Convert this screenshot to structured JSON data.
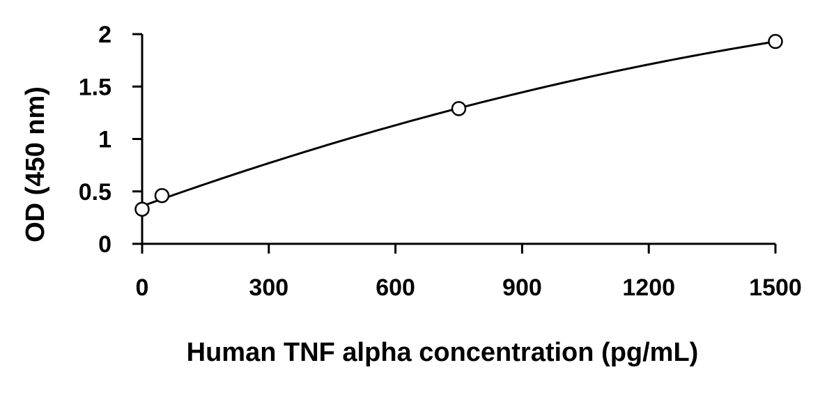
{
  "chart_data": {
    "type": "scatter",
    "title": "",
    "xlabel": "Human TNF alpha concentration (pg/mL)",
    "ylabel": "OD (450 nm)",
    "xlim": [
      0,
      1500
    ],
    "ylim": [
      0,
      2
    ],
    "x_ticks": [
      0,
      300,
      600,
      900,
      1200,
      1500
    ],
    "x_tick_labels": [
      "0",
      "300",
      "600",
      "900",
      "1200",
      "1500"
    ],
    "y_ticks": [
      0,
      0.5,
      1,
      1.5,
      2
    ],
    "y_tick_labels": [
      "0",
      "0.5",
      "1",
      "1.5",
      "2"
    ],
    "grid": false,
    "legend": "none",
    "series": [
      {
        "points": [
          {
            "x": 0,
            "y": 0.33
          },
          {
            "x": 47,
            "y": 0.46
          },
          {
            "x": 750,
            "y": 1.29
          },
          {
            "x": 1500,
            "y": 1.93
          }
        ],
        "marker": "open-circle",
        "fit_curve": true,
        "color": "#000000"
      }
    ]
  }
}
